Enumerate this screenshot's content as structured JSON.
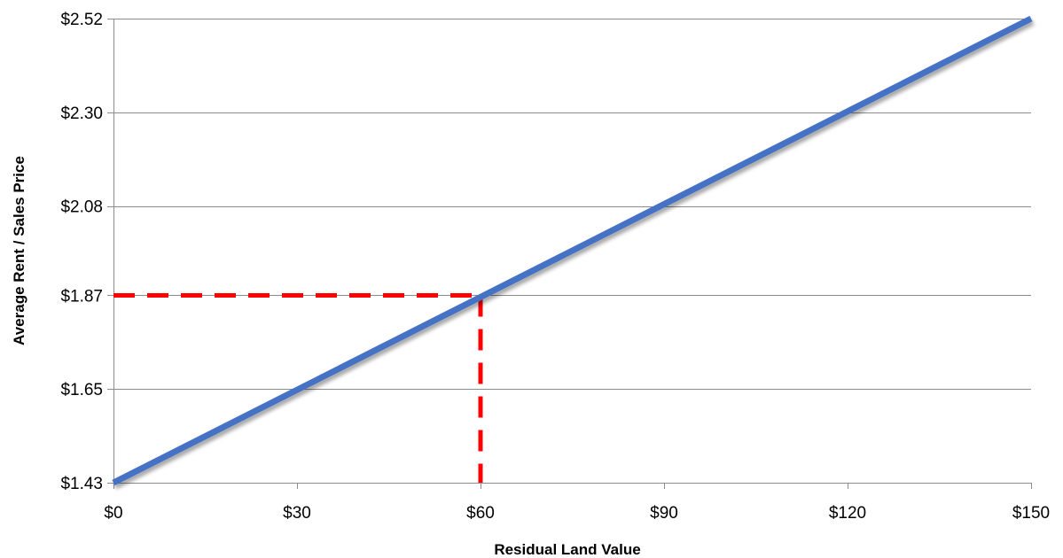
{
  "chart_data": {
    "type": "line",
    "title": "",
    "xlabel": "Residual Land Value",
    "ylabel": "Average Rent / Sales Price",
    "xlim": [
      0,
      150
    ],
    "ylim": [
      1.43,
      2.52
    ],
    "x_ticks": [
      0,
      30,
      60,
      90,
      120,
      150
    ],
    "x_tick_labels": [
      "$0",
      "$30",
      "$60",
      "$90",
      "$120",
      "$150"
    ],
    "y_ticks": [
      1.43,
      1.65,
      1.87,
      2.08,
      2.3,
      2.52
    ],
    "y_tick_labels": [
      "$1.43",
      "$1.65",
      "$1.87",
      "$2.08",
      "$2.30",
      "$2.52"
    ],
    "grid": "horizontal",
    "legend": "none",
    "series": [
      {
        "x": [
          0,
          150
        ],
        "y": [
          1.43,
          2.52
        ],
        "color": "#4472C4"
      }
    ],
    "reference_point": {
      "x": 60,
      "y": 1.87,
      "color": "#FF0000",
      "style": "dashed"
    }
  }
}
